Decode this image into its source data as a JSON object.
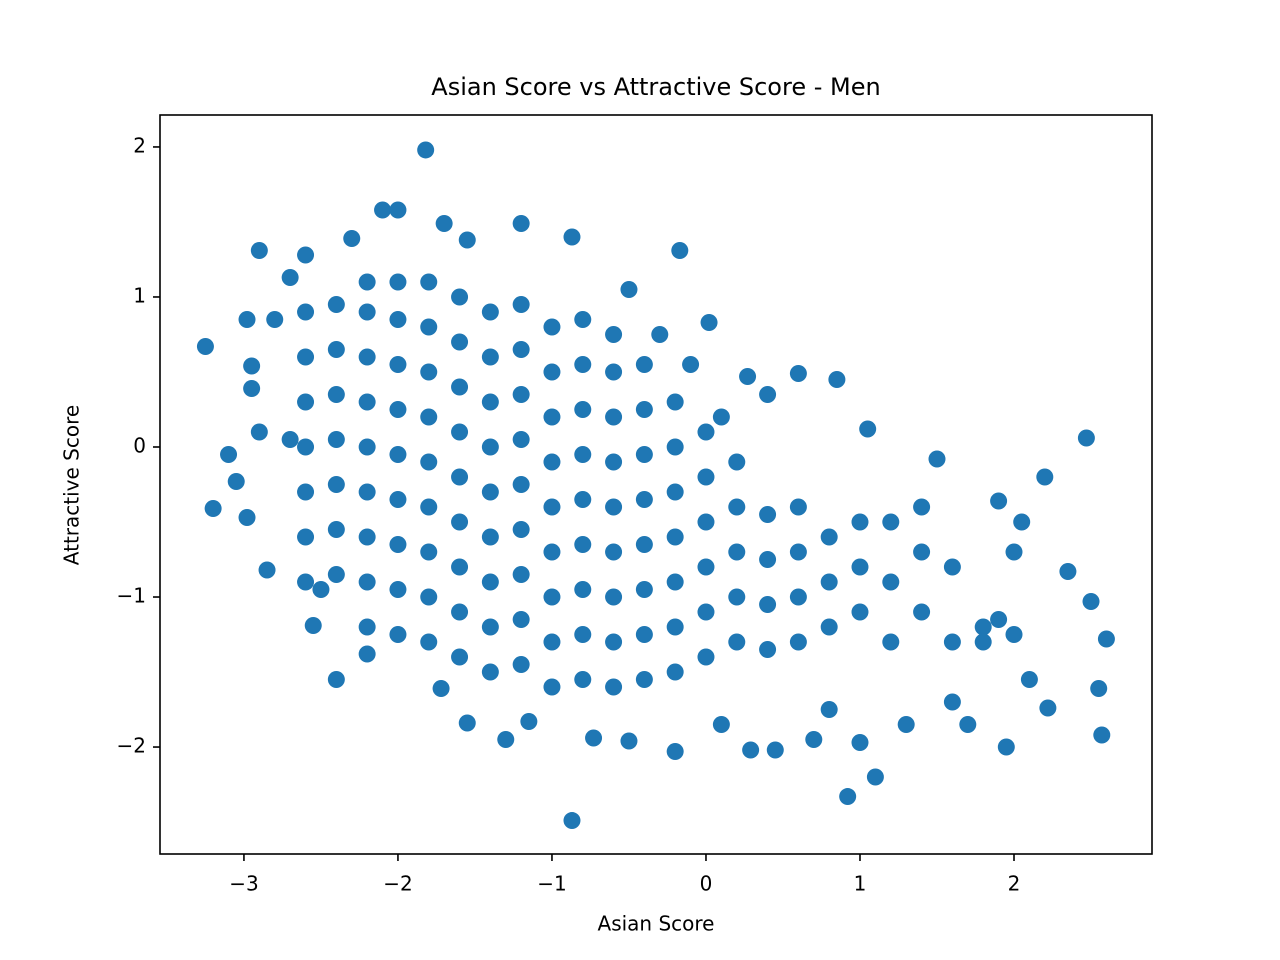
{
  "chart_data": {
    "type": "scatter",
    "title": "Asian Score vs Attractive Score - Men",
    "xlabel": "Asian Score",
    "ylabel": "Attractive Score",
    "color": "#1f77b4",
    "xlim": [
      -3.545,
      2.896
    ],
    "ylim": [
      -2.713,
      2.213
    ],
    "xticks": [
      {
        "value": -3,
        "label": "−3"
      },
      {
        "value": -2,
        "label": "−2"
      },
      {
        "value": -1,
        "label": "−1"
      },
      0,
      1,
      2
    ],
    "yticks": [
      {
        "value": -2,
        "label": "−2"
      },
      {
        "value": -1,
        "label": "−1"
      },
      0,
      1,
      2
    ],
    "x": [
      -2.6,
      -2.6,
      -2.6,
      -2.6,
      -2.6,
      -2.6,
      -2.6,
      -2.4,
      -2.4,
      -2.4,
      -2.4,
      -2.4,
      -2.4,
      -2.4,
      -2.2,
      -2.2,
      -2.2,
      -2.2,
      -2.2,
      -2.2,
      -2.2,
      -2.2,
      -2.2,
      -2.0,
      -2.0,
      -2.0,
      -2.0,
      -2.0,
      -2.0,
      -2.0,
      -2.0,
      -2.0,
      -1.8,
      -1.8,
      -1.8,
      -1.8,
      -1.8,
      -1.8,
      -1.8,
      -1.8,
      -1.8,
      -1.6,
      -1.6,
      -1.6,
      -1.6,
      -1.6,
      -1.6,
      -1.6,
      -1.6,
      -1.6,
      -1.4,
      -1.4,
      -1.4,
      -1.4,
      -1.4,
      -1.4,
      -1.4,
      -1.4,
      -1.4,
      -1.2,
      -1.2,
      -1.2,
      -1.2,
      -1.2,
      -1.2,
      -1.2,
      -1.2,
      -1.2,
      -1.0,
      -1.0,
      -1.0,
      -1.0,
      -1.0,
      -1.0,
      -1.0,
      -1.0,
      -1.0,
      -0.8,
      -0.8,
      -0.8,
      -0.8,
      -0.8,
      -0.8,
      -0.8,
      -0.8,
      -0.8,
      -0.6,
      -0.6,
      -0.6,
      -0.6,
      -0.6,
      -0.6,
      -0.6,
      -0.6,
      -0.6,
      -0.4,
      -0.4,
      -0.4,
      -0.4,
      -0.4,
      -0.4,
      -0.4,
      -0.4,
      -0.2,
      -0.2,
      -0.2,
      -0.2,
      -0.2,
      -0.2,
      -0.2,
      0,
      0,
      0,
      0,
      0,
      0,
      0.2,
      0.2,
      0.2,
      0.2,
      0.2,
      0.4,
      0.4,
      0.4,
      0.4,
      0.6,
      0.6,
      0.6,
      0.6,
      0.8,
      0.8,
      0.8,
      1.0,
      1.0,
      1.0,
      1.2,
      1.2,
      1.2,
      1.4,
      1.4,
      1.4,
      1.6,
      1.6,
      1.8,
      1.8,
      1.9,
      2.0,
      2.0,
      -3.25,
      -3.2,
      -3.1,
      -3.05,
      -2.98,
      -2.95,
      -2.9,
      -2.98,
      -2.95,
      -2.85,
      -2.8,
      -2.7,
      -2.6,
      -2.55,
      -2.4,
      -2.3,
      -2.2,
      -2.1,
      -2.0,
      -1.82,
      -1.7,
      -1.55,
      -1.2,
      -0.87,
      -0.17,
      -1.72,
      -1.55,
      -1.3,
      -1.15,
      -0.87,
      -0.73,
      -0.5,
      -0.2,
      0.02,
      0.27,
      0.29,
      0.45,
      0.6,
      0.85,
      0.92,
      1.1,
      1.5,
      1.95,
      2.47,
      2.55,
      2.57,
      2.6,
      2.22,
      2.2,
      2.35,
      2.5,
      1.05,
      1.3,
      0.7,
      1.0,
      1.9,
      2.05,
      2.1,
      0.4,
      0.1,
      -0.1,
      -0.3,
      -0.5,
      -2.7,
      -2.9,
      -2.5,
      1.6,
      1.7,
      0.8,
      0.1
    ],
    "values": [
      -0.9,
      -0.6,
      -0.3,
      0,
      0.3,
      0.6,
      0.9,
      -0.85,
      -0.55,
      -0.25,
      0.05,
      0.35,
      0.65,
      0.95,
      -1.2,
      -0.9,
      -0.6,
      -0.3,
      0,
      0.3,
      0.6,
      0.9,
      1.1,
      -1.25,
      -0.95,
      -0.65,
      -0.35,
      -0.05,
      0.25,
      0.55,
      0.85,
      1.1,
      -1.3,
      -1.0,
      -0.7,
      -0.4,
      -0.1,
      0.2,
      0.5,
      0.8,
      1.1,
      -1.4,
      -1.1,
      -0.8,
      -0.5,
      -0.2,
      0.1,
      0.4,
      0.7,
      1.0,
      -1.5,
      -1.2,
      -0.9,
      -0.6,
      -0.3,
      0,
      0.3,
      0.6,
      0.9,
      -1.45,
      -1.15,
      -0.85,
      -0.55,
      -0.25,
      0.05,
      0.35,
      0.65,
      0.95,
      -1.6,
      -1.3,
      -1.0,
      -0.7,
      -0.4,
      -0.1,
      0.2,
      0.5,
      0.8,
      -1.55,
      -1.25,
      -0.95,
      -0.65,
      -0.35,
      -0.05,
      0.25,
      0.55,
      0.85,
      -1.6,
      -1.3,
      -1.0,
      -0.7,
      -0.4,
      -0.1,
      0.2,
      0.5,
      0.75,
      -1.55,
      -1.25,
      -0.95,
      -0.65,
      -0.35,
      -0.05,
      0.25,
      0.55,
      -1.5,
      -1.2,
      -0.9,
      -0.6,
      -0.3,
      0,
      0.3,
      -1.4,
      -1.1,
      -0.8,
      -0.5,
      -0.2,
      0.1,
      -1.3,
      -1.0,
      -0.7,
      -0.4,
      -0.1,
      -1.35,
      -1.05,
      -0.75,
      -0.45,
      -1.3,
      -1.0,
      -0.7,
      -0.4,
      -1.2,
      -0.9,
      -0.6,
      -1.1,
      -0.8,
      -0.5,
      -1.3,
      -0.9,
      -0.5,
      -1.1,
      -0.7,
      -0.4,
      -1.3,
      -0.8,
      -1.2,
      -1.3,
      -1.15,
      -0.7,
      -1.25,
      0.67,
      -0.41,
      -0.05,
      -0.23,
      0.85,
      0.54,
      1.31,
      -0.47,
      0.39,
      -0.82,
      0.85,
      1.13,
      1.28,
      -1.19,
      -1.55,
      1.39,
      -1.38,
      1.58,
      1.58,
      1.98,
      1.49,
      1.38,
      1.49,
      1.4,
      1.31,
      -1.61,
      -1.84,
      -1.95,
      -1.83,
      -2.49,
      -1.94,
      -1.96,
      -2.03,
      0.83,
      0.47,
      -2.02,
      -2.02,
      0.49,
      0.45,
      -2.33,
      -2.2,
      -0.08,
      -2.0,
      0.06,
      -1.61,
      -1.92,
      -1.28,
      -1.74,
      -0.2,
      -0.83,
      -1.03,
      0.12,
      -1.85,
      -1.95,
      -1.97,
      -0.36,
      -0.5,
      -1.55,
      0.35,
      0.2,
      0.55,
      0.75,
      1.05,
      0.05,
      0.1,
      -0.95,
      -1.7,
      -1.85,
      -1.75,
      -1.85
    ]
  }
}
